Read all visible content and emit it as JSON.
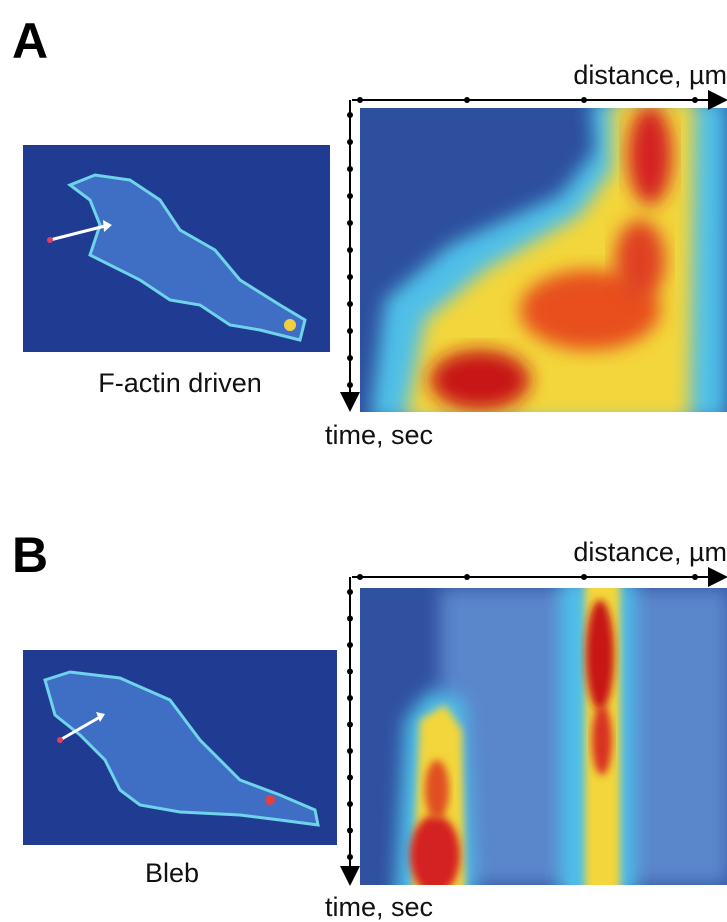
{
  "panels": [
    {
      "label": "A",
      "caption": "F-actin driven",
      "x_axis": "distance, µm",
      "y_axis": "time, sec"
    },
    {
      "label": "B",
      "caption": "Bleb",
      "x_axis": "distance, µm",
      "y_axis": "time, sec"
    }
  ]
}
